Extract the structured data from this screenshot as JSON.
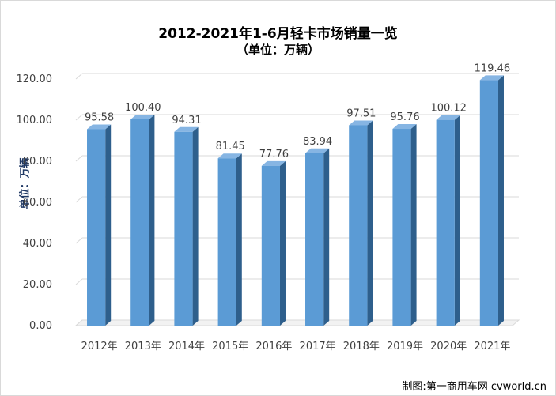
{
  "chart_data": {
    "type": "bar",
    "title": "2012-2021年1-6月轻卡市场销量一览",
    "subtitle": "（单位：万辆）",
    "ylabel": "单位：万辆",
    "xlabel": "",
    "categories": [
      "2012年",
      "2013年",
      "2014年",
      "2015年",
      "2016年",
      "2017年",
      "2018年",
      "2019年",
      "2020年",
      "2021年"
    ],
    "values": [
      95.58,
      100.4,
      94.31,
      81.45,
      77.76,
      83.94,
      97.51,
      95.76,
      100.12,
      119.46
    ],
    "value_labels": [
      "95.58",
      "100.40",
      "94.31",
      "81.45",
      "77.76",
      "83.94",
      "97.51",
      "95.76",
      "100.12",
      "119.46"
    ],
    "ylim": [
      0,
      120
    ],
    "yticks": [
      "0.00",
      "20.00",
      "40.00",
      "60.00",
      "80.00",
      "100.00",
      "120.00"
    ],
    "grid": true,
    "bar_color": "#5b9bd5",
    "bar_side_color": "#2e5f8c",
    "bar_top_color": "#86b5e3"
  },
  "credit": "制图:第一商用车网 cvworld.cn"
}
